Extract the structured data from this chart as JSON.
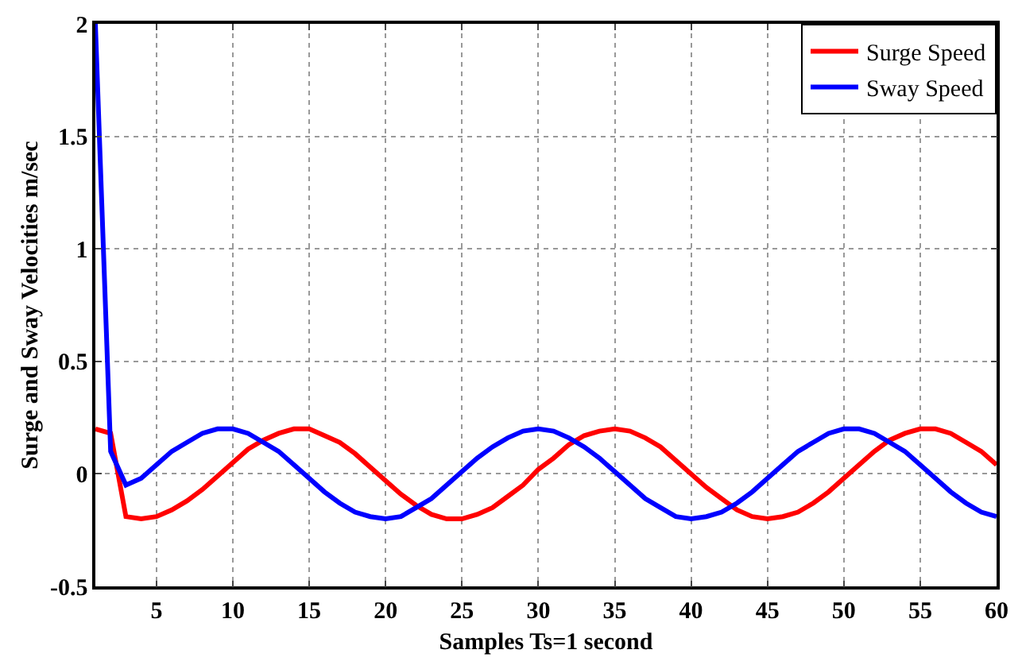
{
  "chart_data": {
    "type": "line",
    "xlabel": "Samples Ts=1 second",
    "ylabel": "Surge and Sway Velocities m/sec",
    "x": [
      1,
      2,
      3,
      4,
      5,
      6,
      7,
      8,
      9,
      10,
      11,
      12,
      13,
      14,
      15,
      16,
      17,
      18,
      19,
      20,
      21,
      22,
      23,
      24,
      25,
      26,
      27,
      28,
      29,
      30,
      31,
      32,
      33,
      34,
      35,
      36,
      37,
      38,
      39,
      40,
      41,
      42,
      43,
      44,
      45,
      46,
      47,
      48,
      49,
      50,
      51,
      52,
      53,
      54,
      55,
      56,
      57,
      58,
      59,
      60
    ],
    "series": [
      {
        "name": "Surge Speed",
        "color": "#ff0000",
        "values": [
          0.2,
          0.18,
          -0.19,
          -0.2,
          -0.19,
          -0.16,
          -0.12,
          -0.07,
          -0.01,
          0.05,
          0.11,
          0.15,
          0.18,
          0.2,
          0.2,
          0.17,
          0.14,
          0.09,
          0.03,
          -0.03,
          -0.09,
          -0.14,
          -0.18,
          -0.2,
          -0.2,
          -0.18,
          -0.15,
          -0.1,
          -0.05,
          0.02,
          0.07,
          0.13,
          0.17,
          0.19,
          0.2,
          0.19,
          0.16,
          0.12,
          0.06,
          0.0,
          -0.06,
          -0.11,
          -0.16,
          -0.19,
          -0.2,
          -0.19,
          -0.17,
          -0.13,
          -0.08,
          -0.02,
          0.04,
          0.1,
          0.15,
          0.18,
          0.2,
          0.2,
          0.18,
          0.14,
          0.1,
          0.04
        ]
      },
      {
        "name": "Sway Speed",
        "color": "#0000ff",
        "values": [
          2.0,
          0.1,
          -0.05,
          -0.02,
          0.04,
          0.1,
          0.14,
          0.18,
          0.2,
          0.2,
          0.18,
          0.14,
          0.1,
          0.04,
          -0.02,
          -0.08,
          -0.13,
          -0.17,
          -0.19,
          -0.2,
          -0.19,
          -0.15,
          -0.11,
          -0.05,
          0.01,
          0.07,
          0.12,
          0.16,
          0.19,
          0.2,
          0.19,
          0.16,
          0.12,
          0.07,
          0.01,
          -0.05,
          -0.11,
          -0.15,
          -0.19,
          -0.2,
          -0.19,
          -0.17,
          -0.13,
          -0.08,
          -0.02,
          0.04,
          0.1,
          0.14,
          0.18,
          0.2,
          0.2,
          0.18,
          0.14,
          0.1,
          0.04,
          -0.02,
          -0.08,
          -0.13,
          -0.17,
          -0.19
        ]
      }
    ],
    "xlim": [
      1,
      60
    ],
    "xticks": [
      5,
      10,
      15,
      20,
      25,
      30,
      35,
      40,
      45,
      50,
      55,
      60
    ],
    "ylim": [
      -0.5,
      2
    ],
    "yticks": [
      -0.5,
      0,
      0.5,
      1,
      1.5,
      2
    ],
    "grid": true,
    "legend": "top right",
    "line_style": "solid",
    "marker": "none"
  }
}
